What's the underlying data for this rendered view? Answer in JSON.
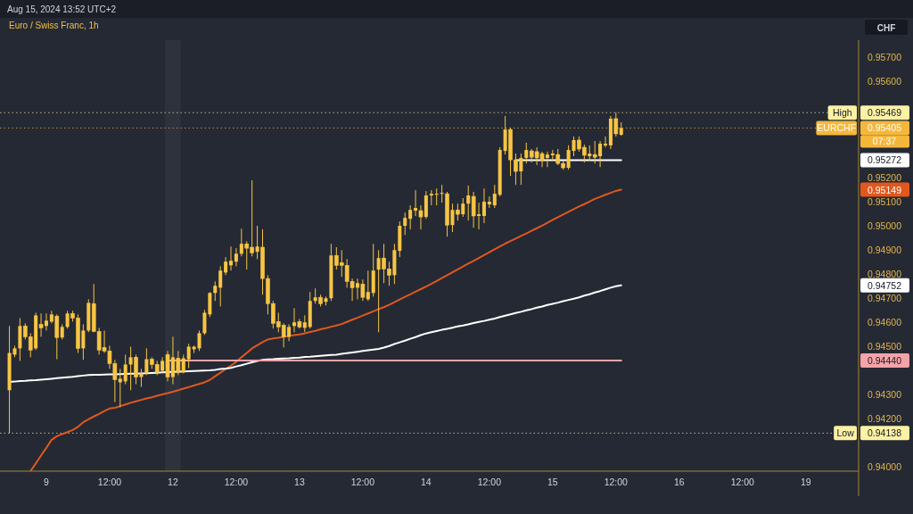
{
  "chart_data": {
    "type": "candlestick",
    "title": "Euro / Swiss Franc, 1h",
    "subtitle": "Aug 15, 2024 13:52 UTC+2",
    "ylabel": "CHF",
    "categories": [
      null,
      null,
      null,
      null,
      null,
      null,
      null,
      "9",
      null,
      null,
      null,
      null,
      null,
      null,
      null,
      null,
      null,
      null,
      null,
      "12:00",
      null,
      null,
      null,
      null,
      null,
      null,
      null,
      null,
      null,
      null,
      null,
      "12",
      null,
      null,
      null,
      null,
      null,
      null,
      null,
      null,
      null,
      null,
      null,
      "12:00",
      null,
      null,
      null,
      null,
      null,
      null,
      null,
      null,
      null,
      null,
      null,
      "13",
      null,
      null,
      null,
      null,
      null,
      null,
      null,
      null,
      null,
      null,
      null,
      "12:00",
      null,
      null,
      null,
      null,
      null,
      null,
      null,
      null,
      null,
      null,
      null,
      "14",
      null,
      null,
      null,
      null,
      null,
      null,
      null,
      null,
      null,
      null,
      null,
      "12:00",
      null,
      null,
      null,
      null,
      null,
      null,
      null,
      null,
      null,
      null,
      null,
      "15",
      null,
      null,
      null,
      null,
      null,
      null,
      null,
      null,
      null,
      null,
      null,
      "12:00",
      null,
      null,
      null,
      null,
      null,
      null,
      null,
      null,
      null,
      null,
      null,
      "16",
      null,
      null,
      null,
      null,
      null,
      null,
      null,
      null,
      null,
      null,
      null,
      "12:00",
      null,
      null,
      null,
      null,
      null,
      null,
      null,
      null,
      null,
      null,
      null,
      "19",
      null,
      null,
      null,
      null,
      null,
      null,
      null,
      null,
      null
    ],
    "ylim": [
      0.9398,
      0.9577
    ],
    "yticks": [
      {
        "value": 0.94,
        "label": "0.94000"
      },
      {
        "value": 0.94138,
        "label": "0.94138"
      },
      {
        "value": 0.942,
        "label": "0.94200"
      },
      {
        "value": 0.943,
        "label": "0.94300"
      },
      {
        "value": 0.9444,
        "label": "0.94440"
      },
      {
        "value": 0.945,
        "label": "0.94500"
      },
      {
        "value": 0.946,
        "label": "0.94600"
      },
      {
        "value": 0.947,
        "label": "0.94700"
      },
      {
        "value": 0.94752,
        "label": "0.94752"
      },
      {
        "value": 0.948,
        "label": "0.94800"
      },
      {
        "value": 0.949,
        "label": "0.94900"
      },
      {
        "value": 0.95,
        "label": "0.95000"
      },
      {
        "value": 0.951,
        "label": "0.95100"
      },
      {
        "value": 0.95149,
        "label": "0.95149"
      },
      {
        "value": 0.952,
        "label": "0.95200"
      },
      {
        "value": 0.95272,
        "label": "0.95272"
      },
      {
        "value": 0.95405,
        "label": "0.95405"
      },
      {
        "value": 0.95469,
        "label": "0.95469"
      },
      {
        "value": 0.956,
        "label": "0.95600"
      },
      {
        "value": 0.957,
        "label": "0.95700"
      }
    ],
    "ref_lines": [
      {
        "axis": "y",
        "value": 0.95469,
        "label": "High",
        "color": "#fcf1a4",
        "line_style": "dotted"
      },
      {
        "axis": "y",
        "value": 0.95405,
        "label": "EURCHF",
        "color": "#f5b73b",
        "line_style": "dotted"
      },
      {
        "axis": "y",
        "value": 0.94138,
        "label": "Low",
        "color": "#fcf1a4",
        "line_style": "dotted"
      }
    ],
    "annotations": [
      "07:37"
    ],
    "series": [
      {
        "type": "line",
        "color": "#e0581e",
        "values": [
          null,
          null,
          null,
          null,
          0.9398,
          0.94012,
          0.94045,
          0.94077,
          0.9411,
          0.94125,
          0.94134,
          0.94142,
          0.94151,
          0.94164,
          0.94183,
          0.94195,
          0.94207,
          0.94218,
          0.9423,
          0.9424,
          0.94243,
          0.9425,
          0.94257,
          0.94264,
          0.9427,
          0.94276,
          0.94282,
          0.94287,
          0.94293,
          0.94299,
          0.94304,
          0.9431,
          0.94316,
          0.94323,
          0.94329,
          0.94336,
          0.94342,
          0.94349,
          0.94359,
          0.94374,
          0.94389,
          0.94404,
          0.94418,
          0.94434,
          0.94453,
          0.94471,
          0.9449,
          0.94503,
          0.94516,
          0.94527,
          0.94531,
          0.94534,
          0.94538,
          0.94541,
          0.94545,
          0.94548,
          0.94552,
          0.94558,
          0.94563,
          0.94569,
          0.94574,
          0.9458,
          0.94585,
          0.94591,
          0.946,
          0.94609,
          0.94617,
          0.94626,
          0.94635,
          0.94644,
          0.94653,
          0.94661,
          0.94671,
          0.94682,
          0.94693,
          0.94704,
          0.94714,
          0.94725,
          0.94736,
          0.94747,
          0.94758,
          0.9477,
          0.94782,
          0.94794,
          0.94806,
          0.94818,
          0.9483,
          0.94842,
          0.94853,
          0.94865,
          0.94877,
          0.94889,
          0.94901,
          0.94913,
          0.94925,
          0.94936,
          0.94946,
          0.94957,
          0.94967,
          0.94978,
          0.94989,
          0.95,
          0.95012,
          0.95024,
          0.95035,
          0.95046,
          0.95057,
          0.95068,
          0.95079,
          0.95089,
          0.951,
          0.95111,
          0.95119,
          0.95128,
          0.95136,
          0.95144,
          0.95149,
          null,
          null,
          null,
          null,
          null,
          null,
          null,
          null,
          null,
          null,
          null,
          null,
          null,
          null,
          null,
          null,
          null,
          null,
          null,
          null,
          null,
          null,
          null,
          null,
          null,
          null,
          null,
          null,
          null,
          null,
          null,
          null,
          null,
          null,
          null,
          null,
          null,
          null,
          null,
          null,
          null,
          null,
          null,
          null
        ]
      },
      {
        "type": "line",
        "color": "#ffffff",
        "values": [
          0.94351,
          0.94352,
          0.94354,
          0.94355,
          0.94357,
          0.94358,
          0.9436,
          0.94362,
          0.94364,
          0.94366,
          0.94368,
          0.9437,
          0.94372,
          0.94375,
          0.94377,
          0.94379,
          0.9438,
          0.9438,
          0.94381,
          0.94382,
          0.94382,
          0.94383,
          0.94384,
          0.94385,
          0.94385,
          0.94386,
          0.94387,
          0.94388,
          0.94389,
          0.9439,
          0.94391,
          0.94392,
          0.94393,
          0.94394,
          0.94395,
          0.94396,
          0.94397,
          0.94398,
          0.94399,
          0.94401,
          0.94404,
          0.94406,
          0.94409,
          0.94415,
          0.9442,
          0.94426,
          0.94432,
          0.94438,
          0.94442,
          0.94444,
          0.94445,
          0.94447,
          0.94448,
          0.94449,
          0.94451,
          0.94452,
          0.94454,
          0.94455,
          0.94457,
          0.94459,
          0.94461,
          0.94463,
          0.94464,
          0.94467,
          0.9447,
          0.94473,
          0.94476,
          0.94479,
          0.94482,
          0.94485,
          0.94488,
          0.94493,
          0.945,
          0.94508,
          0.94515,
          0.94522,
          0.9453,
          0.94537,
          0.94545,
          0.94552,
          0.94557,
          0.94562,
          0.94567,
          0.94571,
          0.94576,
          0.94581,
          0.94585,
          0.9459,
          0.94595,
          0.946,
          0.94604,
          0.94609,
          0.94614,
          0.9462,
          0.94626,
          0.94631,
          0.94637,
          0.94642,
          0.94648,
          0.94653,
          0.94659,
          0.94664,
          0.9467,
          0.94675,
          0.9468,
          0.94686,
          0.94691,
          0.94696,
          0.94702,
          0.94709,
          0.94715,
          0.94722,
          0.94728,
          0.94735,
          0.94742,
          0.94748,
          0.94752,
          null,
          null,
          null,
          null,
          null,
          null,
          null,
          null,
          null,
          null,
          null,
          null,
          null,
          null,
          null,
          null,
          null,
          null,
          null,
          null,
          null,
          null,
          null,
          null,
          null,
          null,
          null,
          null,
          null,
          null,
          null,
          null,
          null,
          null,
          null,
          null,
          null,
          null,
          null,
          null,
          null,
          null,
          null,
          null
        ]
      },
      {
        "type": "line",
        "color": "#f4a3a8",
        "values": [
          null,
          null,
          null,
          null,
          null,
          null,
          null,
          null,
          null,
          null,
          null,
          null,
          null,
          null,
          null,
          null,
          null,
          null,
          null,
          null,
          null,
          null,
          null,
          null,
          null,
          null,
          null,
          null,
          null,
          null,
          0.9444,
          0.9444,
          0.9444,
          0.9444,
          0.9444,
          0.9444,
          0.9444,
          0.9444,
          0.9444,
          0.9444,
          0.9444,
          0.9444,
          0.9444,
          0.9444,
          0.9444,
          0.9444,
          0.9444,
          0.9444,
          0.9444,
          0.9444,
          0.9444,
          0.9444,
          0.9444,
          0.9444,
          0.9444,
          0.9444,
          0.9444,
          0.9444,
          0.9444,
          0.9444,
          0.9444,
          0.9444,
          0.9444,
          0.9444,
          0.9444,
          0.9444,
          0.9444,
          0.9444,
          0.9444,
          0.9444,
          0.9444,
          0.9444,
          0.9444,
          0.9444,
          0.9444,
          0.9444,
          0.9444,
          0.9444,
          0.9444,
          0.9444,
          0.9444,
          0.9444,
          0.9444,
          0.9444,
          0.9444,
          0.9444,
          0.9444,
          0.9444,
          0.9444,
          0.9444,
          0.9444,
          0.9444,
          0.9444,
          0.9444,
          0.9444,
          0.9444,
          0.9444,
          0.9444,
          0.9444,
          0.9444,
          0.9444,
          0.9444,
          0.9444,
          0.9444,
          0.9444,
          0.9444,
          0.9444,
          0.9444,
          0.9444,
          0.9444,
          0.9444,
          0.9444,
          0.9444,
          0.9444,
          0.9444,
          0.9444,
          0.9444,
          null,
          null,
          null,
          null,
          null,
          null,
          null,
          null,
          null,
          null,
          null,
          null,
          null,
          null,
          null,
          null,
          null,
          null,
          null,
          null,
          null,
          null,
          null,
          null,
          null,
          null,
          null,
          null,
          null,
          null,
          null,
          null,
          null,
          null,
          null,
          null,
          null,
          null,
          null,
          null,
          null,
          null,
          null,
          null
        ]
      },
      {
        "type": "line",
        "color": "#ffffff",
        "values": [
          null,
          null,
          null,
          null,
          null,
          null,
          null,
          null,
          null,
          null,
          null,
          null,
          null,
          null,
          null,
          null,
          null,
          null,
          null,
          null,
          null,
          null,
          null,
          null,
          null,
          null,
          null,
          null,
          null,
          null,
          null,
          null,
          null,
          null,
          null,
          null,
          null,
          null,
          null,
          null,
          null,
          null,
          null,
          null,
          null,
          null,
          null,
          null,
          null,
          null,
          null,
          null,
          null,
          null,
          null,
          null,
          null,
          null,
          null,
          null,
          null,
          null,
          null,
          null,
          null,
          null,
          null,
          null,
          null,
          null,
          null,
          null,
          null,
          null,
          null,
          null,
          null,
          null,
          null,
          null,
          null,
          null,
          null,
          null,
          null,
          null,
          null,
          null,
          null,
          null,
          null,
          null,
          null,
          null,
          null,
          null,
          0.95272,
          0.95272,
          0.95272,
          0.95272,
          0.95272,
          0.95272,
          0.95272,
          0.95272,
          0.95272,
          0.95272,
          0.95272,
          0.95272,
          0.95272,
          0.95272,
          0.95272,
          0.95272,
          0.95272,
          0.95272,
          0.95272,
          0.95272,
          0.95272,
          null,
          null,
          null,
          null,
          null,
          null,
          null,
          null,
          null,
          null,
          null,
          null,
          null,
          null,
          null,
          null,
          null,
          null,
          null,
          null,
          null,
          null,
          null,
          null,
          null,
          null,
          null,
          null,
          null,
          null,
          null,
          null,
          null,
          null,
          null,
          null,
          null,
          null,
          null,
          null,
          null,
          null,
          null,
          null
        ]
      },
      {
        "type": "candlestick",
        "color": "#f7c544",
        "ohlc": [
          [
            0.94316,
            0.94583,
            0.94138,
            0.94471
          ],
          [
            0.94464,
            0.94501,
            0.94453,
            0.9449
          ],
          [
            0.9449,
            0.94616,
            0.94438,
            0.94583
          ],
          [
            0.94583,
            0.94594,
            0.94527,
            0.94538
          ],
          [
            0.94538,
            0.94553,
            0.94453,
            0.94483
          ],
          [
            0.9449,
            0.94638,
            0.94483,
            0.94627
          ],
          [
            0.9459,
            0.94635,
            0.94538,
            0.94575
          ],
          [
            0.94583,
            0.94635,
            0.94564,
            0.94605
          ],
          [
            0.94601,
            0.94646,
            0.94594,
            0.94631
          ],
          [
            0.94624,
            0.94631,
            0.94445,
            0.94535
          ],
          [
            0.94535,
            0.9459,
            0.94527,
            0.94579
          ],
          [
            0.94579,
            0.94646,
            0.94572,
            0.94635
          ],
          [
            0.94635,
            0.94646,
            0.94601,
            0.94616
          ],
          [
            0.94616,
            0.94631,
            0.94471,
            0.9449
          ],
          [
            0.9449,
            0.9459,
            0.94442,
            0.94564
          ],
          [
            0.94564,
            0.94694,
            0.94557,
            0.94679
          ],
          [
            0.94676,
            0.94757,
            0.94557,
            0.9456
          ],
          [
            0.9456,
            0.94575,
            0.94464,
            0.94483
          ],
          [
            0.94494,
            0.94564,
            0.94471,
            0.94479
          ],
          [
            0.94479,
            0.94501,
            0.94405,
            0.94427
          ],
          [
            0.94427,
            0.94442,
            0.94267,
            0.9436
          ],
          [
            0.94349,
            0.94405,
            0.94245,
            0.94364
          ],
          [
            0.94353,
            0.94464,
            0.94341,
            0.94423
          ],
          [
            0.94423,
            0.94497,
            0.94316,
            0.94453
          ],
          [
            0.94453,
            0.94464,
            0.94341,
            0.94371
          ],
          [
            0.94371,
            0.94405,
            0.9433,
            0.94386
          ],
          [
            0.94386,
            0.9449,
            0.94379,
            0.94445
          ],
          [
            0.94445,
            0.94453,
            0.94405,
            0.94423
          ],
          [
            0.94423,
            0.94438,
            0.94379,
            0.9439
          ],
          [
            0.94397,
            0.94453,
            0.9439,
            0.94438
          ],
          [
            0.94464,
            0.94479,
            0.94353,
            0.94371
          ],
          [
            0.94371,
            0.94538,
            0.94341,
            0.94453
          ],
          [
            0.94449,
            0.94479,
            0.94379,
            0.9439
          ],
          [
            0.9439,
            0.94464,
            0.94386,
            0.94449
          ],
          [
            0.94445,
            0.94509,
            0.94408,
            0.94497
          ],
          [
            0.94486,
            0.94501,
            0.94471,
            0.94497
          ],
          [
            0.9449,
            0.94564,
            0.94479,
            0.94553
          ],
          [
            0.94553,
            0.9465,
            0.94546,
            0.94638
          ],
          [
            0.94631,
            0.94724,
            0.9462,
            0.9472
          ],
          [
            0.9472,
            0.94768,
            0.94687,
            0.9475
          ],
          [
            0.94742,
            0.94831,
            0.94664,
            0.94813
          ],
          [
            0.94805,
            0.94869,
            0.94794,
            0.9485
          ],
          [
            0.94835,
            0.94913,
            0.94813,
            0.94854
          ],
          [
            0.9485,
            0.94906,
            0.94831,
            0.94883
          ],
          [
            0.94883,
            0.94987,
            0.94872,
            0.94924
          ],
          [
            0.94924,
            0.94935,
            0.94817,
            0.94906
          ],
          [
            0.9491,
            0.95188,
            0.94872,
            0.94887
          ],
          [
            0.94891,
            0.94999,
            0.94861,
            0.94913
          ],
          [
            0.9491,
            0.94984,
            0.94713,
            0.9478
          ],
          [
            0.9478,
            0.94794,
            0.94631,
            0.94676
          ],
          [
            0.94676,
            0.94687,
            0.94572,
            0.94594
          ],
          [
            0.94601,
            0.94638,
            0.94557,
            0.94579
          ],
          [
            0.94586,
            0.94594,
            0.94494,
            0.94538
          ],
          [
            0.94538,
            0.9459,
            0.9452,
            0.94579
          ],
          [
            0.94583,
            0.94657,
            0.94557,
            0.94598
          ],
          [
            0.94601,
            0.94612,
            0.94572,
            0.94579
          ],
          [
            0.94575,
            0.94627,
            0.94557,
            0.94598
          ],
          [
            0.94579,
            0.94724,
            0.94572,
            0.94687
          ],
          [
            0.94687,
            0.94739,
            0.94676,
            0.94702
          ],
          [
            0.94702,
            0.94713,
            0.94664,
            0.94676
          ],
          [
            0.94683,
            0.94705,
            0.94668,
            0.94698
          ],
          [
            0.94698,
            0.94924,
            0.94687,
            0.94876
          ],
          [
            0.94876,
            0.9491,
            0.94817,
            0.94835
          ],
          [
            0.94846,
            0.94898,
            0.94787,
            0.94835
          ],
          [
            0.94835,
            0.94861,
            0.94742,
            0.94768
          ],
          [
            0.94768,
            0.9478,
            0.94687,
            0.94742
          ],
          [
            0.94742,
            0.9478,
            0.94694,
            0.94761
          ],
          [
            0.94757,
            0.94776,
            0.94687,
            0.94702
          ],
          [
            0.94694,
            0.94813,
            0.94687,
            0.94724
          ],
          [
            0.9472,
            0.94924,
            0.94705,
            0.94813
          ],
          [
            0.94817,
            0.94898,
            0.94557,
            0.94865
          ],
          [
            0.94865,
            0.94924,
            0.94761,
            0.9482
          ],
          [
            0.9482,
            0.9485,
            0.9475,
            0.94794
          ],
          [
            0.94794,
            0.94924,
            0.94757,
            0.94898
          ],
          [
            0.94895,
            0.95017,
            0.94869,
            0.94999
          ],
          [
            0.94999,
            0.95054,
            0.94961,
            0.95032
          ],
          [
            0.95028,
            0.95084,
            0.94984,
            0.95065
          ],
          [
            0.95062,
            0.95147,
            0.9504,
            0.95073
          ],
          [
            0.95062,
            0.95084,
            0.94984,
            0.95036
          ],
          [
            0.95036,
            0.95143,
            0.95028,
            0.95125
          ],
          [
            0.95125,
            0.95147,
            0.95084,
            0.95132
          ],
          [
            0.95128,
            0.95154,
            0.95084,
            0.95132
          ],
          [
            0.95132,
            0.95169,
            0.95095,
            0.95136
          ],
          [
            0.95132,
            0.9514,
            0.94954,
            0.95002
          ],
          [
            0.95002,
            0.95091,
            0.94973,
            0.95065
          ],
          [
            0.95065,
            0.95091,
            0.95021,
            0.95047
          ],
          [
            0.95047,
            0.95114,
            0.95036,
            0.95091
          ],
          [
            0.95091,
            0.95166,
            0.95021,
            0.95125
          ],
          [
            0.95121,
            0.9514,
            0.94991,
            0.9504
          ],
          [
            0.9504,
            0.95095,
            0.94984,
            0.95047
          ],
          [
            0.9504,
            0.95154,
            0.9501,
            0.95099
          ],
          [
            0.95088,
            0.95121,
            0.95073,
            0.95099
          ],
          [
            0.95084,
            0.95169,
            0.95073,
            0.95132
          ],
          [
            0.95128,
            0.95325,
            0.95121,
            0.95314
          ],
          [
            0.9531,
            0.95455,
            0.95295,
            0.95399
          ],
          [
            0.95399,
            0.95407,
            0.95206,
            0.95273
          ],
          [
            0.95273,
            0.95299,
            0.95169,
            0.95225
          ],
          [
            0.95225,
            0.95299,
            0.95169,
            0.95281
          ],
          [
            0.95281,
            0.95344,
            0.95258,
            0.95314
          ],
          [
            0.9531,
            0.95318,
            0.95262,
            0.95284
          ],
          [
            0.95307,
            0.95325,
            0.95251,
            0.95281
          ],
          [
            0.95299,
            0.95307,
            0.95243,
            0.95269
          ],
          [
            0.95281,
            0.95307,
            0.95243,
            0.95295
          ],
          [
            0.95292,
            0.95314,
            0.95269,
            0.95299
          ],
          [
            0.95295,
            0.95318,
            0.95251,
            0.95258
          ],
          [
            0.95258,
            0.95269,
            0.95232,
            0.9524
          ],
          [
            0.9524,
            0.95333,
            0.95232,
            0.95314
          ],
          [
            0.9531,
            0.9537,
            0.95288,
            0.95355
          ],
          [
            0.95355,
            0.9537,
            0.95307,
            0.95318
          ],
          [
            0.95325,
            0.95336,
            0.95262,
            0.95292
          ],
          [
            0.95288,
            0.95333,
            0.95269,
            0.95299
          ],
          [
            0.95295,
            0.95351,
            0.95258,
            0.95284
          ],
          [
            0.95288,
            0.95351,
            0.95243,
            0.9534
          ],
          [
            0.95333,
            0.9537,
            0.95325,
            0.9534
          ],
          [
            0.95333,
            0.95455,
            0.95318,
            0.95444
          ],
          [
            0.95444,
            0.95469,
            0.9537,
            0.95381
          ],
          [
            0.95377,
            0.95429,
            0.95373,
            0.95405
          ],
          null,
          null,
          null,
          null,
          null,
          null,
          null,
          null,
          null,
          null,
          null,
          null,
          null,
          null,
          null,
          null,
          null,
          null,
          null,
          null,
          null,
          null,
          null,
          null,
          null,
          null,
          null,
          null,
          null,
          null,
          null,
          null,
          null,
          null,
          null,
          null,
          null,
          null,
          null,
          null,
          null,
          null,
          null,
          null
        ]
      }
    ]
  }
}
